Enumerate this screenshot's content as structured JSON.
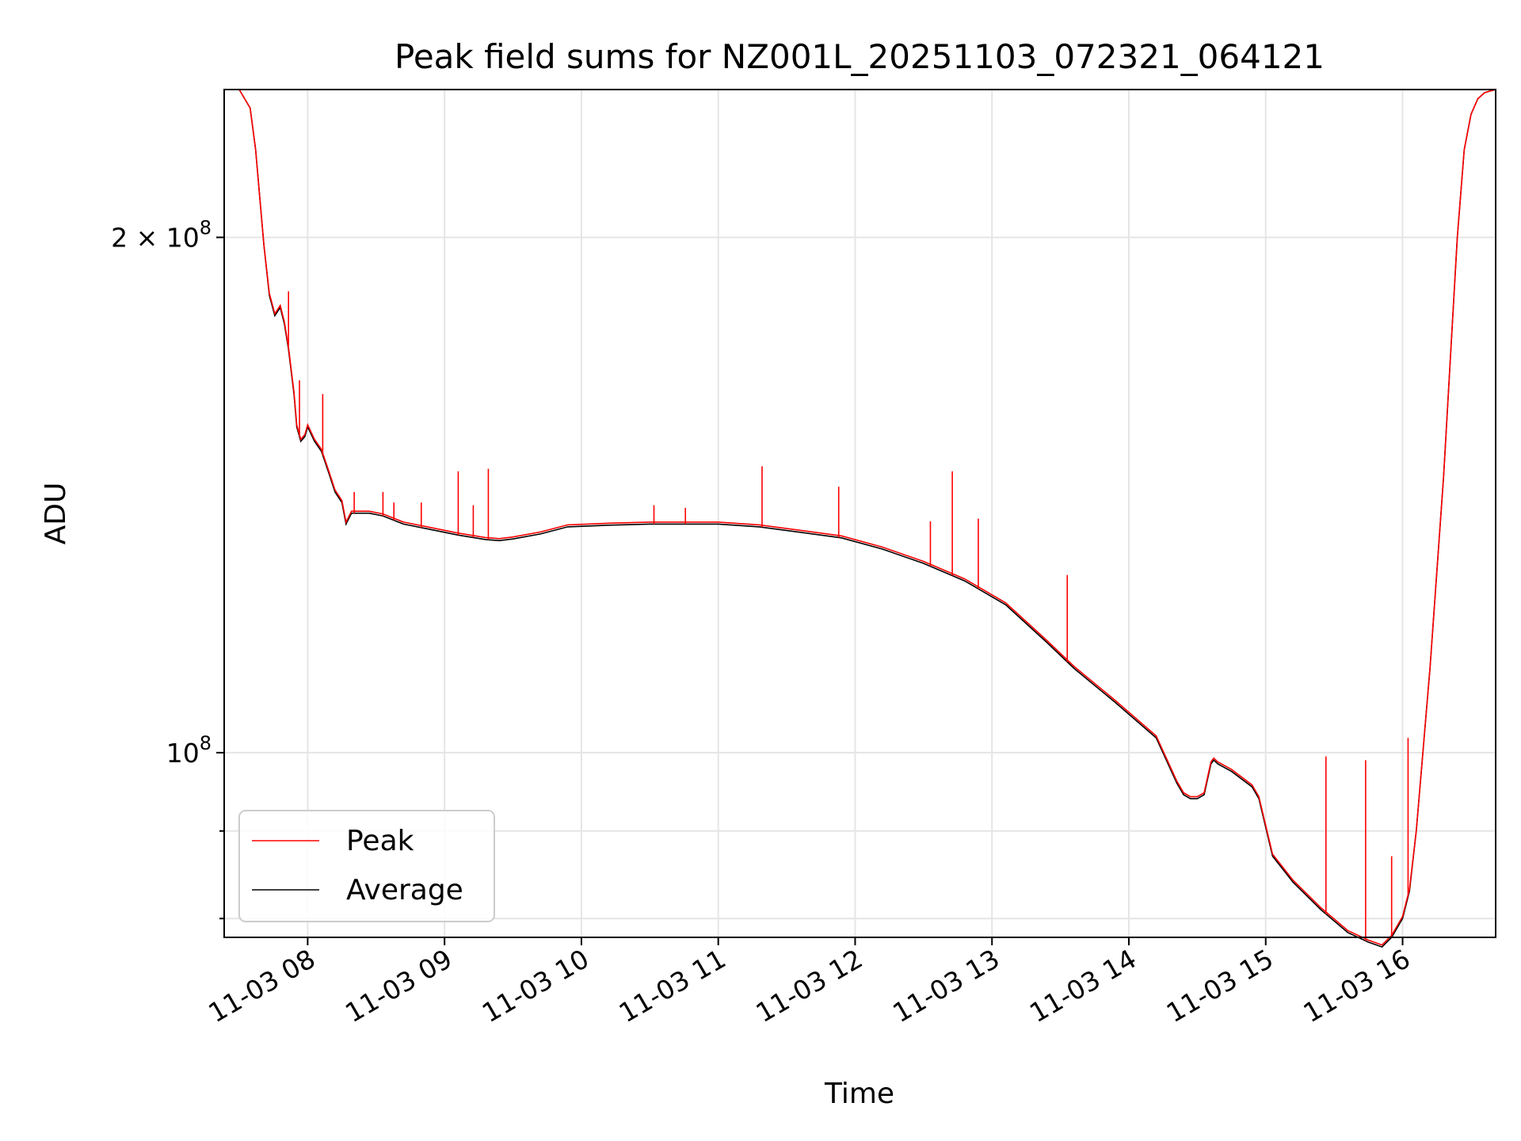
{
  "chart_data": {
    "type": "line",
    "title": "Peak field sums for NZ001L_20251103_072321_064121",
    "xlabel": "Time",
    "ylabel": "ADU",
    "yscale": "log",
    "ylim": [
      78000000,
      244000000
    ],
    "xlim_hours": [
      7.39,
      16.68
    ],
    "x_ticks": [
      {
        "value": 8,
        "label": "11-03 08"
      },
      {
        "value": 9,
        "label": "11-03 09"
      },
      {
        "value": 10,
        "label": "11-03 10"
      },
      {
        "value": 11,
        "label": "11-03 11"
      },
      {
        "value": 12,
        "label": "11-03 12"
      },
      {
        "value": 13,
        "label": "11-03 13"
      },
      {
        "value": 14,
        "label": "11-03 14"
      },
      {
        "value": 15,
        "label": "11-03 15"
      },
      {
        "value": 16,
        "label": "11-03 16"
      }
    ],
    "y_major_ticks": [
      {
        "value": 100000000,
        "base": "10",
        "exp": "8",
        "coef": ""
      },
      {
        "value": 200000000,
        "base": "10",
        "exp": "8",
        "coef": "2 × "
      }
    ],
    "y_minor_ticks": [
      80000000,
      90000000
    ],
    "grid": true,
    "legend": {
      "location": "lower-left",
      "entries": [
        "Peak",
        "Average"
      ]
    },
    "series": [
      {
        "name": "Average",
        "color": "#000000",
        "x": [
          7.39,
          7.5,
          7.58,
          7.62,
          7.68,
          7.72,
          7.76,
          7.8,
          7.83,
          7.86,
          7.9,
          7.92,
          7.95,
          7.98,
          8.0,
          8.05,
          8.1,
          8.15,
          8.2,
          8.25,
          8.28,
          8.32,
          8.38,
          8.45,
          8.55,
          8.7,
          8.9,
          9.1,
          9.3,
          9.4,
          9.5,
          9.7,
          9.9,
          10.2,
          10.5,
          11.0,
          11.3,
          11.6,
          11.9,
          12.2,
          12.5,
          12.8,
          13.1,
          13.4,
          13.6,
          13.9,
          14.2,
          14.35,
          14.4,
          14.45,
          14.5,
          14.55,
          14.6,
          14.62,
          14.65,
          14.75,
          14.9,
          14.95,
          15.05,
          15.2,
          15.4,
          15.6,
          15.75,
          15.85,
          15.92,
          16.0,
          16.05,
          16.1,
          16.2,
          16.3,
          16.4,
          16.45,
          16.5,
          16.55,
          16.6,
          16.68
        ],
        "y": [
          244000000,
          244000000,
          238000000,
          225000000,
          198000000,
          185000000,
          180000000,
          182000000,
          178000000,
          172000000,
          162000000,
          155000000,
          152000000,
          153000000,
          155000000,
          152000000,
          150000000,
          146000000,
          142000000,
          140000000,
          136000000,
          138000000,
          138000000,
          138000000,
          137500000,
          136000000,
          135000000,
          134000000,
          133200000,
          133000000,
          133300000,
          134200000,
          135500000,
          135800000,
          136000000,
          136000000,
          135500000,
          134500000,
          133500000,
          131500000,
          129000000,
          126000000,
          122000000,
          116000000,
          112000000,
          107000000,
          102000000,
          96000000,
          94500000,
          94000000,
          94000000,
          94500000,
          98500000,
          99000000,
          98500000,
          97500000,
          95500000,
          94000000,
          87000000,
          84000000,
          81000000,
          78500000,
          77500000,
          77000000,
          78000000,
          80000000,
          83000000,
          90000000,
          112000000,
          145000000,
          200000000,
          225000000,
          236000000,
          241000000,
          243000000,
          244000000
        ]
      },
      {
        "name": "Peak",
        "color": "#ff0000",
        "spikes": [
          {
            "x": 7.86,
            "y": 186000000
          },
          {
            "x": 7.94,
            "y": 165000000
          },
          {
            "x": 8.11,
            "y": 162000000
          },
          {
            "x": 8.34,
            "y": 142000000
          },
          {
            "x": 8.55,
            "y": 142000000
          },
          {
            "x": 8.63,
            "y": 140000000
          },
          {
            "x": 8.83,
            "y": 140000000
          },
          {
            "x": 9.1,
            "y": 146000000
          },
          {
            "x": 9.21,
            "y": 139500000
          },
          {
            "x": 9.32,
            "y": 146500000
          },
          {
            "x": 10.53,
            "y": 139500000
          },
          {
            "x": 10.76,
            "y": 139000000
          },
          {
            "x": 11.32,
            "y": 147000000
          },
          {
            "x": 11.88,
            "y": 143000000
          },
          {
            "x": 12.55,
            "y": 136500000
          },
          {
            "x": 12.71,
            "y": 146000000
          },
          {
            "x": 12.9,
            "y": 137000000
          },
          {
            "x": 13.55,
            "y": 127000000
          },
          {
            "x": 15.44,
            "y": 99500000
          },
          {
            "x": 15.73,
            "y": 99000000
          },
          {
            "x": 15.92,
            "y": 87000000
          },
          {
            "x": 16.04,
            "y": 102000000
          }
        ]
      }
    ]
  }
}
